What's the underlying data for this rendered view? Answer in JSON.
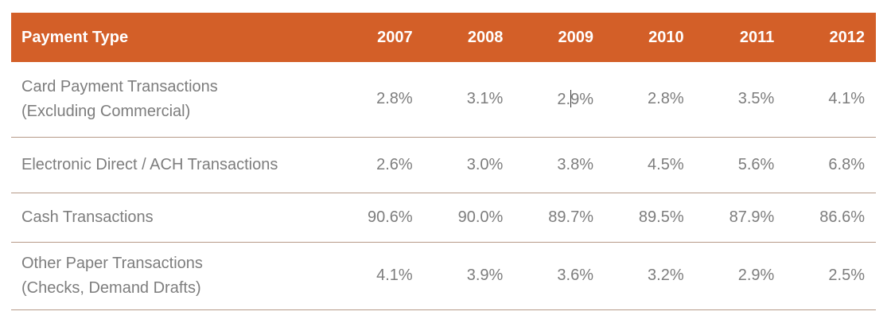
{
  "header": {
    "payment_type": "Payment Type",
    "years": [
      "2007",
      "2008",
      "2009",
      "2010",
      "2011",
      "2012"
    ]
  },
  "rows": [
    {
      "type_line1": "Card Payment Transactions",
      "type_line2": "(Excluding Commercial)",
      "values": [
        "2.8%",
        "3.1%",
        "2.9%",
        "2.8%",
        "3.5%",
        "4.1%"
      ]
    },
    {
      "type_line1": "Electronic Direct / ACH Transactions",
      "type_line2": "",
      "values": [
        "2.6%",
        "3.0%",
        "3.8%",
        "4.5%",
        "5.6%",
        "6.8%"
      ]
    },
    {
      "type_line1": "Cash Transactions",
      "type_line2": "",
      "values": [
        "90.6%",
        "90.0%",
        "89.7%",
        "89.5%",
        "87.9%",
        "86.6%"
      ]
    },
    {
      "type_line1": "Other Paper Transactions",
      "type_line2": "(Checks, Demand Drafts)",
      "values": [
        "4.1%",
        "3.9%",
        "3.6%",
        "3.2%",
        "2.9%",
        "2.5%"
      ]
    }
  ],
  "caret_split": {
    "before": "2.",
    "after": "9%"
  },
  "colors": {
    "header_bg": "#d35f28",
    "header_text": "#ffffff",
    "body_text": "#7d7d7d",
    "row_divider": "#b69a88"
  }
}
